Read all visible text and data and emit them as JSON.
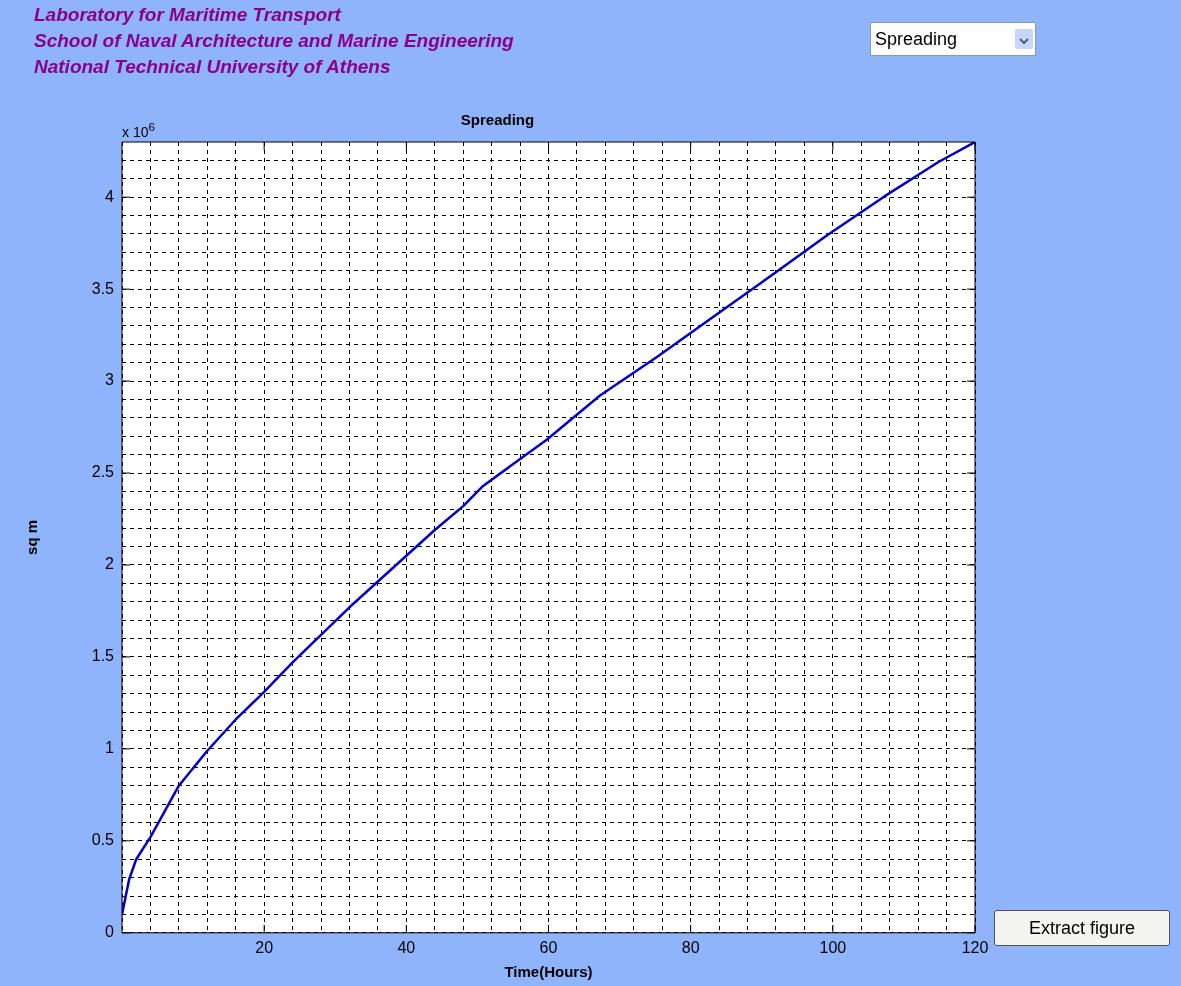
{
  "chart_data": {
    "type": "line",
    "title": "Spreading",
    "xlabel": "Time(Hours)",
    "ylabel": "sq m",
    "annotations": [
      "Laboratory for Maritime Transport",
      "School of Naval Architecture and Marine Engineering",
      "National Technical University of Athens",
      "Spreading",
      "Extract figure",
      "x 10$^{6}$"
    ],
    "x": [
      0,
      1,
      2,
      4,
      8,
      12,
      16,
      20,
      24,
      28,
      32,
      36,
      40,
      44,
      48,
      50.8,
      59.7,
      67.2,
      75.2,
      83.2,
      91.2,
      99.1,
      107.1,
      114.8,
      120
    ],
    "series": [
      {
        "color": "#0000cc",
        "values": [
          0.1,
          0.29,
          0.4,
          0.52,
          0.8,
          0.99,
          1.16,
          1.31,
          1.47,
          1.62,
          1.77,
          1.91,
          2.05,
          2.19,
          2.32,
          2.43,
          2.68,
          2.92,
          3.13,
          3.35,
          3.57,
          3.79,
          4.0,
          4.19,
          4.3
        ]
      }
    ],
    "xlim": [
      0,
      120
    ],
    "xticks": [
      {
        "value": 0,
        "label": null
      },
      {
        "value": 4,
        "label": null
      },
      {
        "value": 8,
        "label": null
      },
      {
        "value": 12,
        "label": null
      },
      {
        "value": 16,
        "label": null
      },
      20,
      {
        "value": 24,
        "label": null
      },
      {
        "value": 28,
        "label": null
      },
      {
        "value": 32,
        "label": null
      },
      {
        "value": 36,
        "label": null
      },
      40,
      {
        "value": 44,
        "label": null
      },
      {
        "value": 48,
        "label": null
      },
      {
        "value": 52,
        "label": null
      },
      {
        "value": 56,
        "label": null
      },
      60,
      {
        "value": 64,
        "label": null
      },
      {
        "value": 68,
        "label": null
      },
      {
        "value": 72,
        "label": null
      },
      {
        "value": 76,
        "label": null
      },
      80,
      {
        "value": 84,
        "label": null
      },
      {
        "value": 88,
        "label": null
      },
      {
        "value": 92,
        "label": null
      },
      {
        "value": 96,
        "label": null
      },
      100,
      {
        "value": 104,
        "label": null
      },
      {
        "value": 108,
        "label": null
      },
      {
        "value": 112,
        "label": null
      },
      {
        "value": 116,
        "label": null
      },
      120
    ],
    "ylim": [
      0,
      4.3
    ],
    "yticks": [
      0,
      {
        "value": 0.1,
        "label": null
      },
      {
        "value": 0.2,
        "label": null
      },
      {
        "value": 0.3,
        "label": null
      },
      {
        "value": 0.4,
        "label": null
      },
      0.5,
      {
        "value": 0.6,
        "label": null
      },
      {
        "value": 0.7,
        "label": null
      },
      {
        "value": 0.8,
        "label": null
      },
      {
        "value": 0.9,
        "label": null
      },
      1,
      {
        "value": 1.1,
        "label": null
      },
      {
        "value": 1.2,
        "label": null
      },
      {
        "value": 1.3,
        "label": null
      },
      {
        "value": 1.4,
        "label": null
      },
      1.5,
      {
        "value": 1.6,
        "label": null
      },
      {
        "value": 1.7,
        "label": null
      },
      {
        "value": 1.8,
        "label": null
      },
      {
        "value": 1.9,
        "label": null
      },
      2,
      {
        "value": 2.1,
        "label": null
      },
      {
        "value": 2.2,
        "label": null
      },
      {
        "value": 2.3,
        "label": null
      },
      {
        "value": 2.4,
        "label": null
      },
      2.5,
      {
        "value": 2.6,
        "label": null
      },
      {
        "value": 2.7,
        "label": null
      },
      {
        "value": 2.8,
        "label": null
      },
      {
        "value": 2.9,
        "label": null
      },
      3,
      {
        "value": 3.1,
        "label": null
      },
      {
        "value": 3.2,
        "label": null
      },
      {
        "value": 3.3,
        "label": null
      },
      {
        "value": 3.4,
        "label": null
      },
      3.5,
      {
        "value": 3.6,
        "label": null
      },
      {
        "value": 3.7,
        "label": null
      },
      {
        "value": 3.8,
        "label": null
      },
      {
        "value": 3.9,
        "label": null
      },
      4,
      {
        "value": 4.1,
        "label": null
      },
      {
        "value": 4.2,
        "label": null
      }
    ],
    "grid": true,
    "legend": false,
    "marker": "none",
    "line_style": "solid"
  }
}
